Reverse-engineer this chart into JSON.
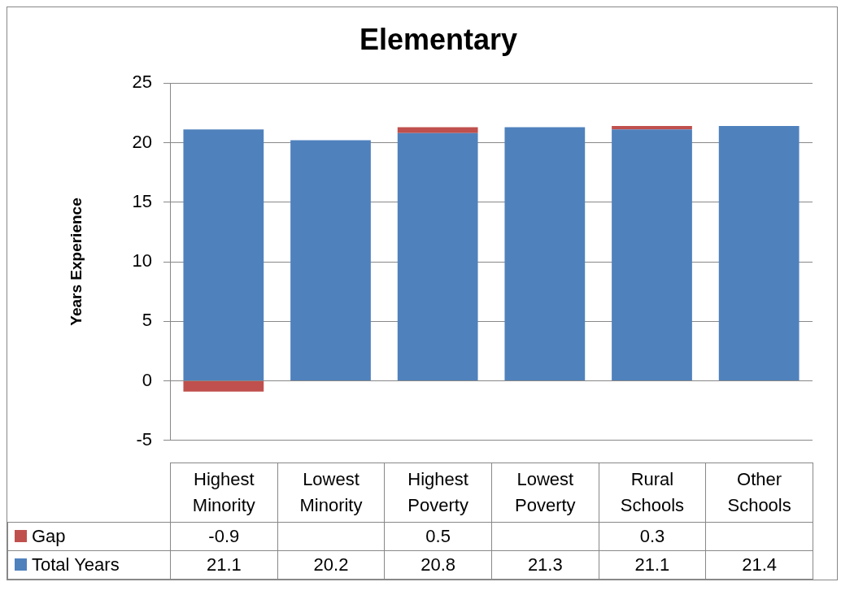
{
  "chart_data": {
    "type": "bar",
    "title": "Elementary",
    "ylabel": "Years Experience",
    "categories": [
      "Highest Minority",
      "Lowest Minority",
      "Highest Poverty",
      "Lowest Poverty",
      "Rural Schools",
      "Other Schools"
    ],
    "series": [
      {
        "name": "Total Years",
        "color": "#4f81bd",
        "values": [
          21.1,
          20.2,
          20.8,
          21.3,
          21.1,
          21.4
        ]
      },
      {
        "name": "Gap",
        "color": "#c0504d",
        "values": [
          -0.9,
          null,
          0.5,
          null,
          0.3,
          null
        ]
      }
    ],
    "stacked": true,
    "ylim": [
      -5,
      25
    ],
    "yticks": [
      -5,
      0,
      5,
      10,
      15,
      20,
      25
    ],
    "grid": "y",
    "legend": "bottom",
    "data_labels": true
  }
}
